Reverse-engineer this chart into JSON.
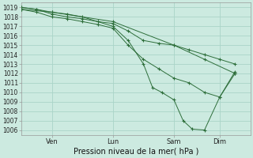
{
  "background_color": "#cceae0",
  "grid_color": "#aad4c8",
  "line_color": "#2d6e3a",
  "title": "Pression niveau de la mer( hPa )",
  "ylim": [
    1005.5,
    1019.5
  ],
  "yticks": [
    1006,
    1007,
    1008,
    1009,
    1010,
    1011,
    1012,
    1013,
    1014,
    1015,
    1016,
    1017,
    1018,
    1019
  ],
  "xtick_labels": [
    "Ven",
    "Lun",
    "Sam",
    "Dim"
  ],
  "xtick_positions": [
    1,
    3,
    5,
    6.5
  ],
  "xlim": [
    0,
    7.5
  ],
  "series": [
    {
      "x": [
        0.0,
        1.0,
        3.0,
        5.0,
        6.0,
        7.0
      ],
      "y": [
        1018.8,
        1018.5,
        1017.5,
        1015.0,
        1013.5,
        1012.0
      ]
    },
    {
      "x": [
        0.0,
        0.5,
        1.0,
        1.5,
        2.0,
        2.5,
        3.0,
        3.5,
        4.0,
        4.3,
        4.6,
        5.0,
        5.3,
        5.6,
        6.0,
        6.5,
        7.0
      ],
      "y": [
        1019.0,
        1018.8,
        1018.5,
        1018.3,
        1018.0,
        1017.5,
        1017.0,
        1015.5,
        1013.0,
        1010.5,
        1010.0,
        1009.2,
        1007.0,
        1006.1,
        1006.0,
        1009.5,
        1012.0
      ]
    },
    {
      "x": [
        0.0,
        0.5,
        1.0,
        1.5,
        2.0,
        2.5,
        3.0,
        3.5,
        4.0,
        4.5,
        5.0,
        5.5,
        6.0,
        6.5,
        7.0
      ],
      "y": [
        1018.8,
        1018.5,
        1018.0,
        1017.8,
        1017.5,
        1017.2,
        1016.8,
        1015.0,
        1013.5,
        1012.5,
        1011.5,
        1011.0,
        1010.0,
        1009.5,
        1012.2
      ]
    },
    {
      "x": [
        0.0,
        0.5,
        1.0,
        1.5,
        2.0,
        2.5,
        3.0,
        3.5,
        4.0,
        4.5,
        5.0,
        5.5,
        6.0,
        6.5,
        7.0
      ],
      "y": [
        1019.0,
        1018.8,
        1018.3,
        1018.0,
        1017.8,
        1017.5,
        1017.3,
        1016.5,
        1015.5,
        1015.2,
        1015.0,
        1014.5,
        1014.0,
        1013.5,
        1013.0
      ]
    }
  ]
}
